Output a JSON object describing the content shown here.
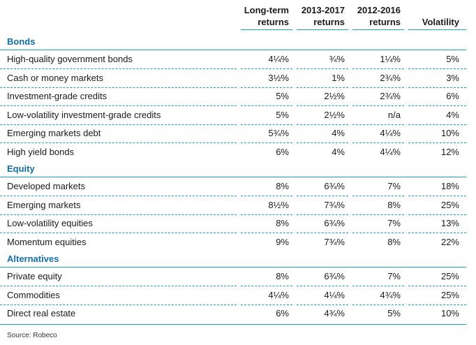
{
  "columns": [
    {
      "line1": "Long-term",
      "line2": "returns"
    },
    {
      "line1": "2013-2017",
      "line2": "returns"
    },
    {
      "line1": "2012-2016",
      "line2": "returns"
    },
    {
      "line1": "",
      "line2": "Volatility"
    }
  ],
  "sections": [
    {
      "title": "Bonds",
      "rows": [
        {
          "label": "High-quality government bonds",
          "values": [
            "4¼%",
            "¾%",
            "1¼%",
            "5%"
          ]
        },
        {
          "label": "Cash or money markets",
          "values": [
            "3½%",
            "1%",
            "2¾%",
            "3%"
          ]
        },
        {
          "label": "Investment-grade credits",
          "values": [
            "5%",
            "2½%",
            "2¾%",
            "6%"
          ]
        },
        {
          "label": "Low-volatility investment-grade credits",
          "values": [
            "5%",
            "2½%",
            "n/a",
            "4%"
          ]
        },
        {
          "label": "Emerging markets debt",
          "values": [
            "5¾%",
            "4%",
            "4¼%",
            "10%"
          ]
        },
        {
          "label": "High yield bonds",
          "values": [
            "6%",
            "4%",
            "4¼%",
            "12%"
          ]
        }
      ]
    },
    {
      "title": "Equity",
      "rows": [
        {
          "label": "Developed markets",
          "values": [
            "8%",
            "6¾%",
            "7%",
            "18%"
          ]
        },
        {
          "label": "Emerging markets",
          "values": [
            "8½%",
            "7¾%",
            "8%",
            "25%"
          ]
        },
        {
          "label": "Low-volatility equities",
          "values": [
            "8%",
            "6¾%",
            "7%",
            "13%"
          ]
        },
        {
          "label": "Momentum equities",
          "values": [
            "9%",
            "7¾%",
            "8%",
            "22%"
          ]
        }
      ]
    },
    {
      "title": "Alternatives",
      "rows": [
        {
          "label": "Private equity",
          "values": [
            "8%",
            "6¾%",
            "7%",
            "25%"
          ]
        },
        {
          "label": "Commodities",
          "values": [
            "4¼%",
            "4¼%",
            "4¾%",
            "25%"
          ]
        },
        {
          "label": "Direct real estate",
          "values": [
            "6%",
            "4¾%",
            "5%",
            "10%"
          ]
        }
      ]
    }
  ],
  "source": "Source: Robeco",
  "colors": {
    "accent": "#1a9fd0",
    "section_title": "#0f6fa8"
  }
}
